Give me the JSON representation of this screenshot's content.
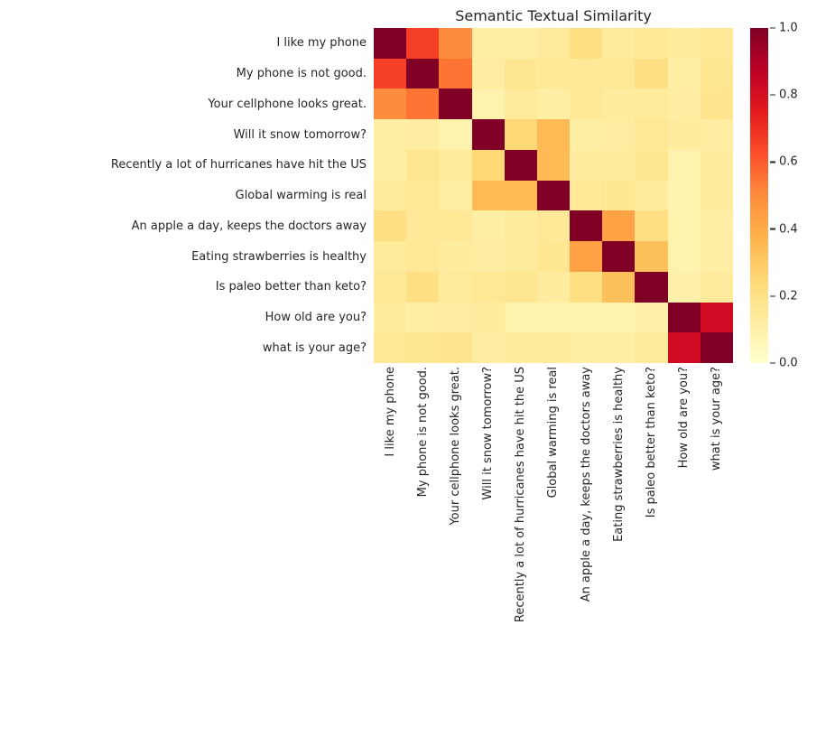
{
  "chart_data": {
    "type": "heatmap",
    "title": "Semantic Textual Similarity",
    "labels": [
      "I like my phone",
      "My phone is not good.",
      "Your cellphone looks great.",
      "Will it snow tomorrow?",
      "Recently a lot of hurricanes have hit the US",
      "Global warming is real",
      "An apple a day, keeps the doctors away",
      "Eating strawberries is healthy",
      "Is paleo better than keto?",
      "How old are you?",
      "what is your age?"
    ],
    "matrix": [
      [
        1.0,
        0.66,
        0.5,
        0.11,
        0.11,
        0.14,
        0.21,
        0.14,
        0.15,
        0.13,
        0.15
      ],
      [
        0.66,
        1.0,
        0.55,
        0.12,
        0.17,
        0.15,
        0.15,
        0.15,
        0.21,
        0.11,
        0.17
      ],
      [
        0.5,
        0.55,
        1.0,
        0.09,
        0.14,
        0.11,
        0.15,
        0.13,
        0.14,
        0.12,
        0.18
      ],
      [
        0.11,
        0.12,
        0.09,
        1.0,
        0.25,
        0.35,
        0.11,
        0.12,
        0.16,
        0.13,
        0.12
      ],
      [
        0.11,
        0.17,
        0.14,
        0.25,
        1.0,
        0.35,
        0.13,
        0.13,
        0.17,
        0.09,
        0.13
      ],
      [
        0.14,
        0.15,
        0.11,
        0.35,
        0.35,
        1.0,
        0.15,
        0.17,
        0.13,
        0.09,
        0.13
      ],
      [
        0.21,
        0.15,
        0.15,
        0.11,
        0.13,
        0.15,
        1.0,
        0.43,
        0.21,
        0.09,
        0.11
      ],
      [
        0.14,
        0.15,
        0.13,
        0.12,
        0.13,
        0.17,
        0.43,
        1.0,
        0.33,
        0.09,
        0.11
      ],
      [
        0.15,
        0.21,
        0.14,
        0.16,
        0.17,
        0.13,
        0.21,
        0.33,
        1.0,
        0.1,
        0.14
      ],
      [
        0.13,
        0.11,
        0.12,
        0.13,
        0.09,
        0.09,
        0.09,
        0.09,
        0.1,
        1.0,
        0.82
      ],
      [
        0.15,
        0.17,
        0.18,
        0.12,
        0.13,
        0.13,
        0.11,
        0.11,
        0.14,
        0.82,
        1.0
      ]
    ],
    "vmin": 0.0,
    "vmax": 1.0,
    "colormap": "YlOrRd",
    "colormap_stops": [
      [
        0.0,
        "#ffffcc"
      ],
      [
        0.125,
        "#ffeda0"
      ],
      [
        0.25,
        "#fed976"
      ],
      [
        0.375,
        "#feb24c"
      ],
      [
        0.5,
        "#fd8d3c"
      ],
      [
        0.625,
        "#fc4e2a"
      ],
      [
        0.75,
        "#e31a1c"
      ],
      [
        0.875,
        "#bd0026"
      ],
      [
        1.0,
        "#800026"
      ]
    ],
    "colorbar_ticks": [
      "1.0",
      "0.8",
      "0.6",
      "0.4",
      "0.2",
      "0.0"
    ],
    "text_color": "#262626",
    "background": "#ffffff",
    "legend_position": "right",
    "grid": false
  }
}
